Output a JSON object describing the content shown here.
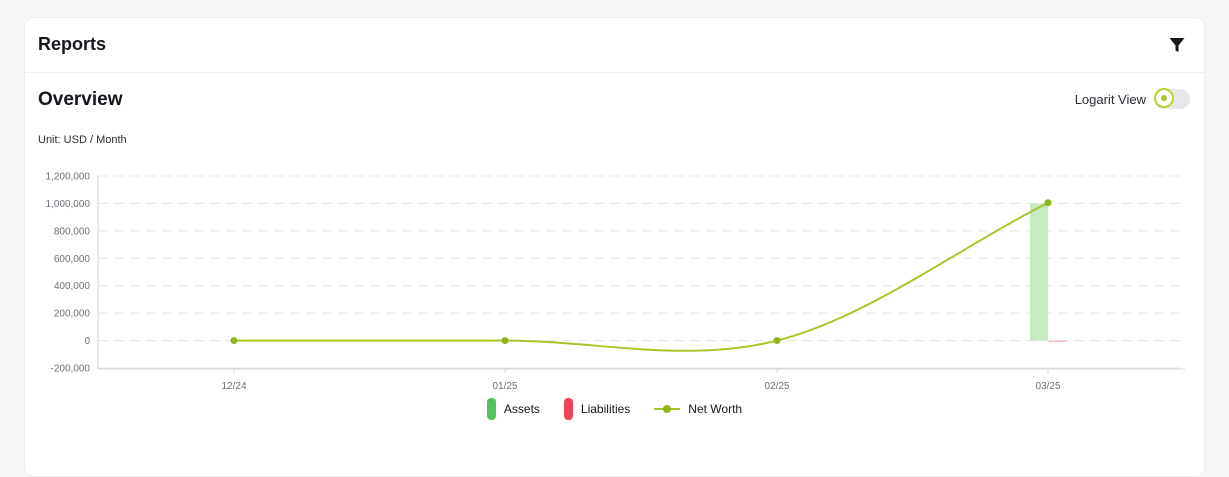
{
  "header": {
    "title": "Reports",
    "filter_icon": "filter-icon"
  },
  "overview": {
    "title": "Overview",
    "toggle_label": "Logarit View",
    "toggle_on": false,
    "unit": "Unit: USD / Month"
  },
  "colors": {
    "assets": "#52c458",
    "assets_fill": "#c7eac3",
    "liabilities": "#f0435a",
    "net_worth": "#a6c62a",
    "net_worth_dot": "#8fb51e",
    "grid": "#e3e4e7"
  },
  "chart_data": {
    "type": "bar",
    "title": "Overview",
    "unit": "USD / Month",
    "categories": [
      "12/24",
      "01/25",
      "02/25",
      "03/25"
    ],
    "ylim": [
      -200000,
      1200000
    ],
    "yticks": [
      "1,200,000",
      "1,000,000",
      "800,000",
      "600,000",
      "400,000",
      "200,000",
      "0",
      "-200,000"
    ],
    "ytick_values": [
      1200000,
      1000000,
      800000,
      600000,
      400000,
      200000,
      0,
      -200000
    ],
    "grid": true,
    "series": [
      {
        "name": "Assets",
        "type": "bar",
        "values": [
          0,
          0,
          0,
          1000000
        ]
      },
      {
        "name": "Liabilities",
        "type": "bar",
        "values": [
          0,
          0,
          0,
          -5000
        ]
      },
      {
        "name": "Net Worth",
        "type": "line",
        "values": [
          0,
          0,
          0,
          1005000
        ]
      }
    ],
    "legend": [
      "Assets",
      "Liabilities",
      "Net Worth"
    ],
    "legend_position": "bottom-center"
  }
}
